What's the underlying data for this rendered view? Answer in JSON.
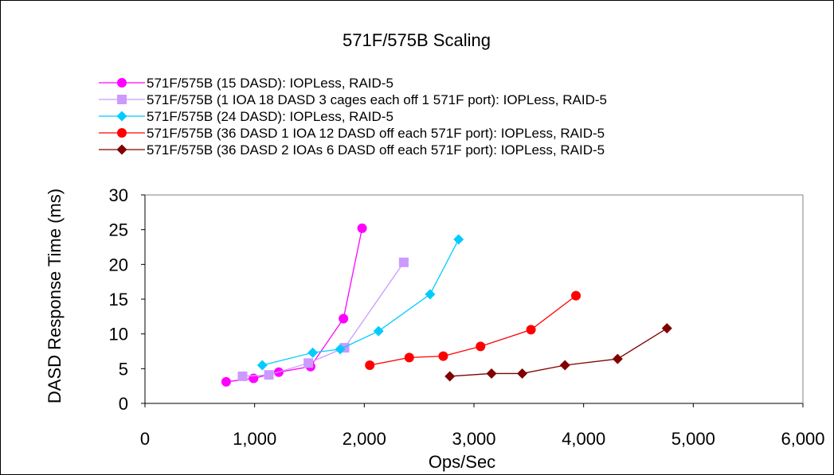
{
  "chart_data": {
    "type": "line",
    "title": "571F/575B Scaling",
    "xlabel": "Ops/Sec",
    "ylabel": "DASD Response Time (ms)",
    "xlim": [
      0,
      6000
    ],
    "ylim": [
      0,
      30
    ],
    "x_ticks": [
      "0",
      "1,000",
      "2,000",
      "3,000",
      "4,000",
      "5,000",
      "6,000"
    ],
    "y_ticks": [
      "0",
      "5",
      "10",
      "15",
      "20",
      "25",
      "30"
    ],
    "grid": false,
    "legend_position": "top",
    "series": [
      {
        "name": "571F/575B (15 DASD): IOPLess, RAID-5",
        "color": "#ff00ff",
        "marker": "circle",
        "points": [
          [
            740,
            3.1
          ],
          [
            990,
            3.6
          ],
          [
            1220,
            4.5
          ],
          [
            1510,
            5.3
          ],
          [
            1810,
            12.2
          ],
          [
            1980,
            25.2
          ]
        ]
      },
      {
        "name": "571F/575B (1 IOA 18 DASD 3 cages each off 1 571F port): IOPLess, RAID-5",
        "color": "#cc99ff",
        "marker": "square",
        "points": [
          [
            890,
            3.9
          ],
          [
            1130,
            4.1
          ],
          [
            1490,
            5.8
          ],
          [
            1820,
            8.0
          ],
          [
            2360,
            20.3
          ]
        ]
      },
      {
        "name": "571F/575B (24 DASD): IOPLess, RAID-5",
        "color": "#00ccff",
        "marker": "diamond",
        "points": [
          [
            1070,
            5.5
          ],
          [
            1530,
            7.3
          ],
          [
            1780,
            7.8
          ],
          [
            2130,
            10.4
          ],
          [
            2600,
            15.7
          ],
          [
            2860,
            23.6
          ]
        ]
      },
      {
        "name": "571F/575B (36 DASD 1 IOA 12 DASD off each 571F port): IOPLess, RAID-5",
        "color": "#ff0000",
        "marker": "circle",
        "points": [
          [
            2050,
            5.5
          ],
          [
            2410,
            6.6
          ],
          [
            2720,
            6.8
          ],
          [
            3060,
            8.2
          ],
          [
            3520,
            10.6
          ],
          [
            3930,
            15.5
          ]
        ]
      },
      {
        "name": "571F/575B (36 DASD 2 IOAs 6 DASD off each 571F port): IOPLess, RAID-5",
        "color": "#800000",
        "marker": "diamond",
        "points": [
          [
            2780,
            3.9
          ],
          [
            3160,
            4.3
          ],
          [
            3440,
            4.3
          ],
          [
            3830,
            5.5
          ],
          [
            4310,
            6.4
          ],
          [
            4760,
            10.8
          ]
        ]
      }
    ]
  }
}
